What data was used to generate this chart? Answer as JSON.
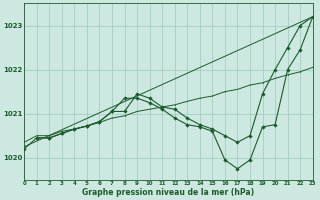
{
  "background_color": "#cce8e0",
  "plot_bg_color": "#cce8e0",
  "grid_color": "#99ccbb",
  "line_color": "#1a5c2a",
  "xlim": [
    0,
    23
  ],
  "ylim": [
    1019.5,
    1023.5
  ],
  "yticks": [
    1020,
    1021,
    1022,
    1023
  ],
  "xticks": [
    0,
    1,
    2,
    3,
    4,
    5,
    6,
    7,
    8,
    9,
    10,
    11,
    12,
    13,
    14,
    15,
    16,
    17,
    18,
    19,
    20,
    21,
    22,
    23
  ],
  "xlabel": "Graphe pression niveau de la mer (hPa)",
  "line1_x": [
    0,
    23
  ],
  "line1_y": [
    1020.25,
    1023.2
  ],
  "line2_x": [
    0,
    1,
    2,
    3,
    4,
    5,
    6,
    7,
    8,
    9,
    10,
    11,
    12,
    13,
    14,
    15,
    16,
    17,
    18,
    19,
    20,
    21,
    22,
    23
  ],
  "line2_y": [
    1020.35,
    1020.5,
    1020.5,
    1020.6,
    1020.65,
    1020.72,
    1020.8,
    1020.9,
    1020.95,
    1021.05,
    1021.1,
    1021.15,
    1021.2,
    1021.28,
    1021.35,
    1021.4,
    1021.5,
    1021.55,
    1021.65,
    1021.7,
    1021.8,
    1021.88,
    1021.95,
    1022.05
  ],
  "line3_x": [
    0,
    1,
    2,
    3,
    4,
    5,
    6,
    7,
    8,
    9,
    10,
    11,
    12,
    13,
    14,
    15,
    16,
    17,
    18,
    19,
    20,
    21,
    22,
    23
  ],
  "line3_y": [
    1020.2,
    1020.45,
    1020.45,
    1020.55,
    1020.65,
    1020.72,
    1020.82,
    1021.05,
    1021.05,
    1021.45,
    1021.35,
    1021.15,
    1021.1,
    1020.9,
    1020.75,
    1020.65,
    1020.5,
    1020.35,
    1020.5,
    1021.45,
    1022.0,
    1022.5,
    1023.0,
    1023.2
  ],
  "line4_x": [
    1,
    2,
    3,
    4,
    5,
    6,
    7,
    8,
    9,
    10,
    11,
    12,
    13,
    14,
    15,
    16,
    17,
    18,
    19,
    20,
    21,
    22,
    23
  ],
  "line4_y": [
    1020.45,
    1020.45,
    1020.55,
    1020.65,
    1020.72,
    1020.82,
    1021.05,
    1021.35,
    1021.35,
    1021.25,
    1021.1,
    1020.9,
    1020.75,
    1020.7,
    1020.6,
    1019.95,
    1019.75,
    1019.95,
    1020.7,
    1020.75,
    1022.0,
    1022.45,
    1023.2
  ]
}
